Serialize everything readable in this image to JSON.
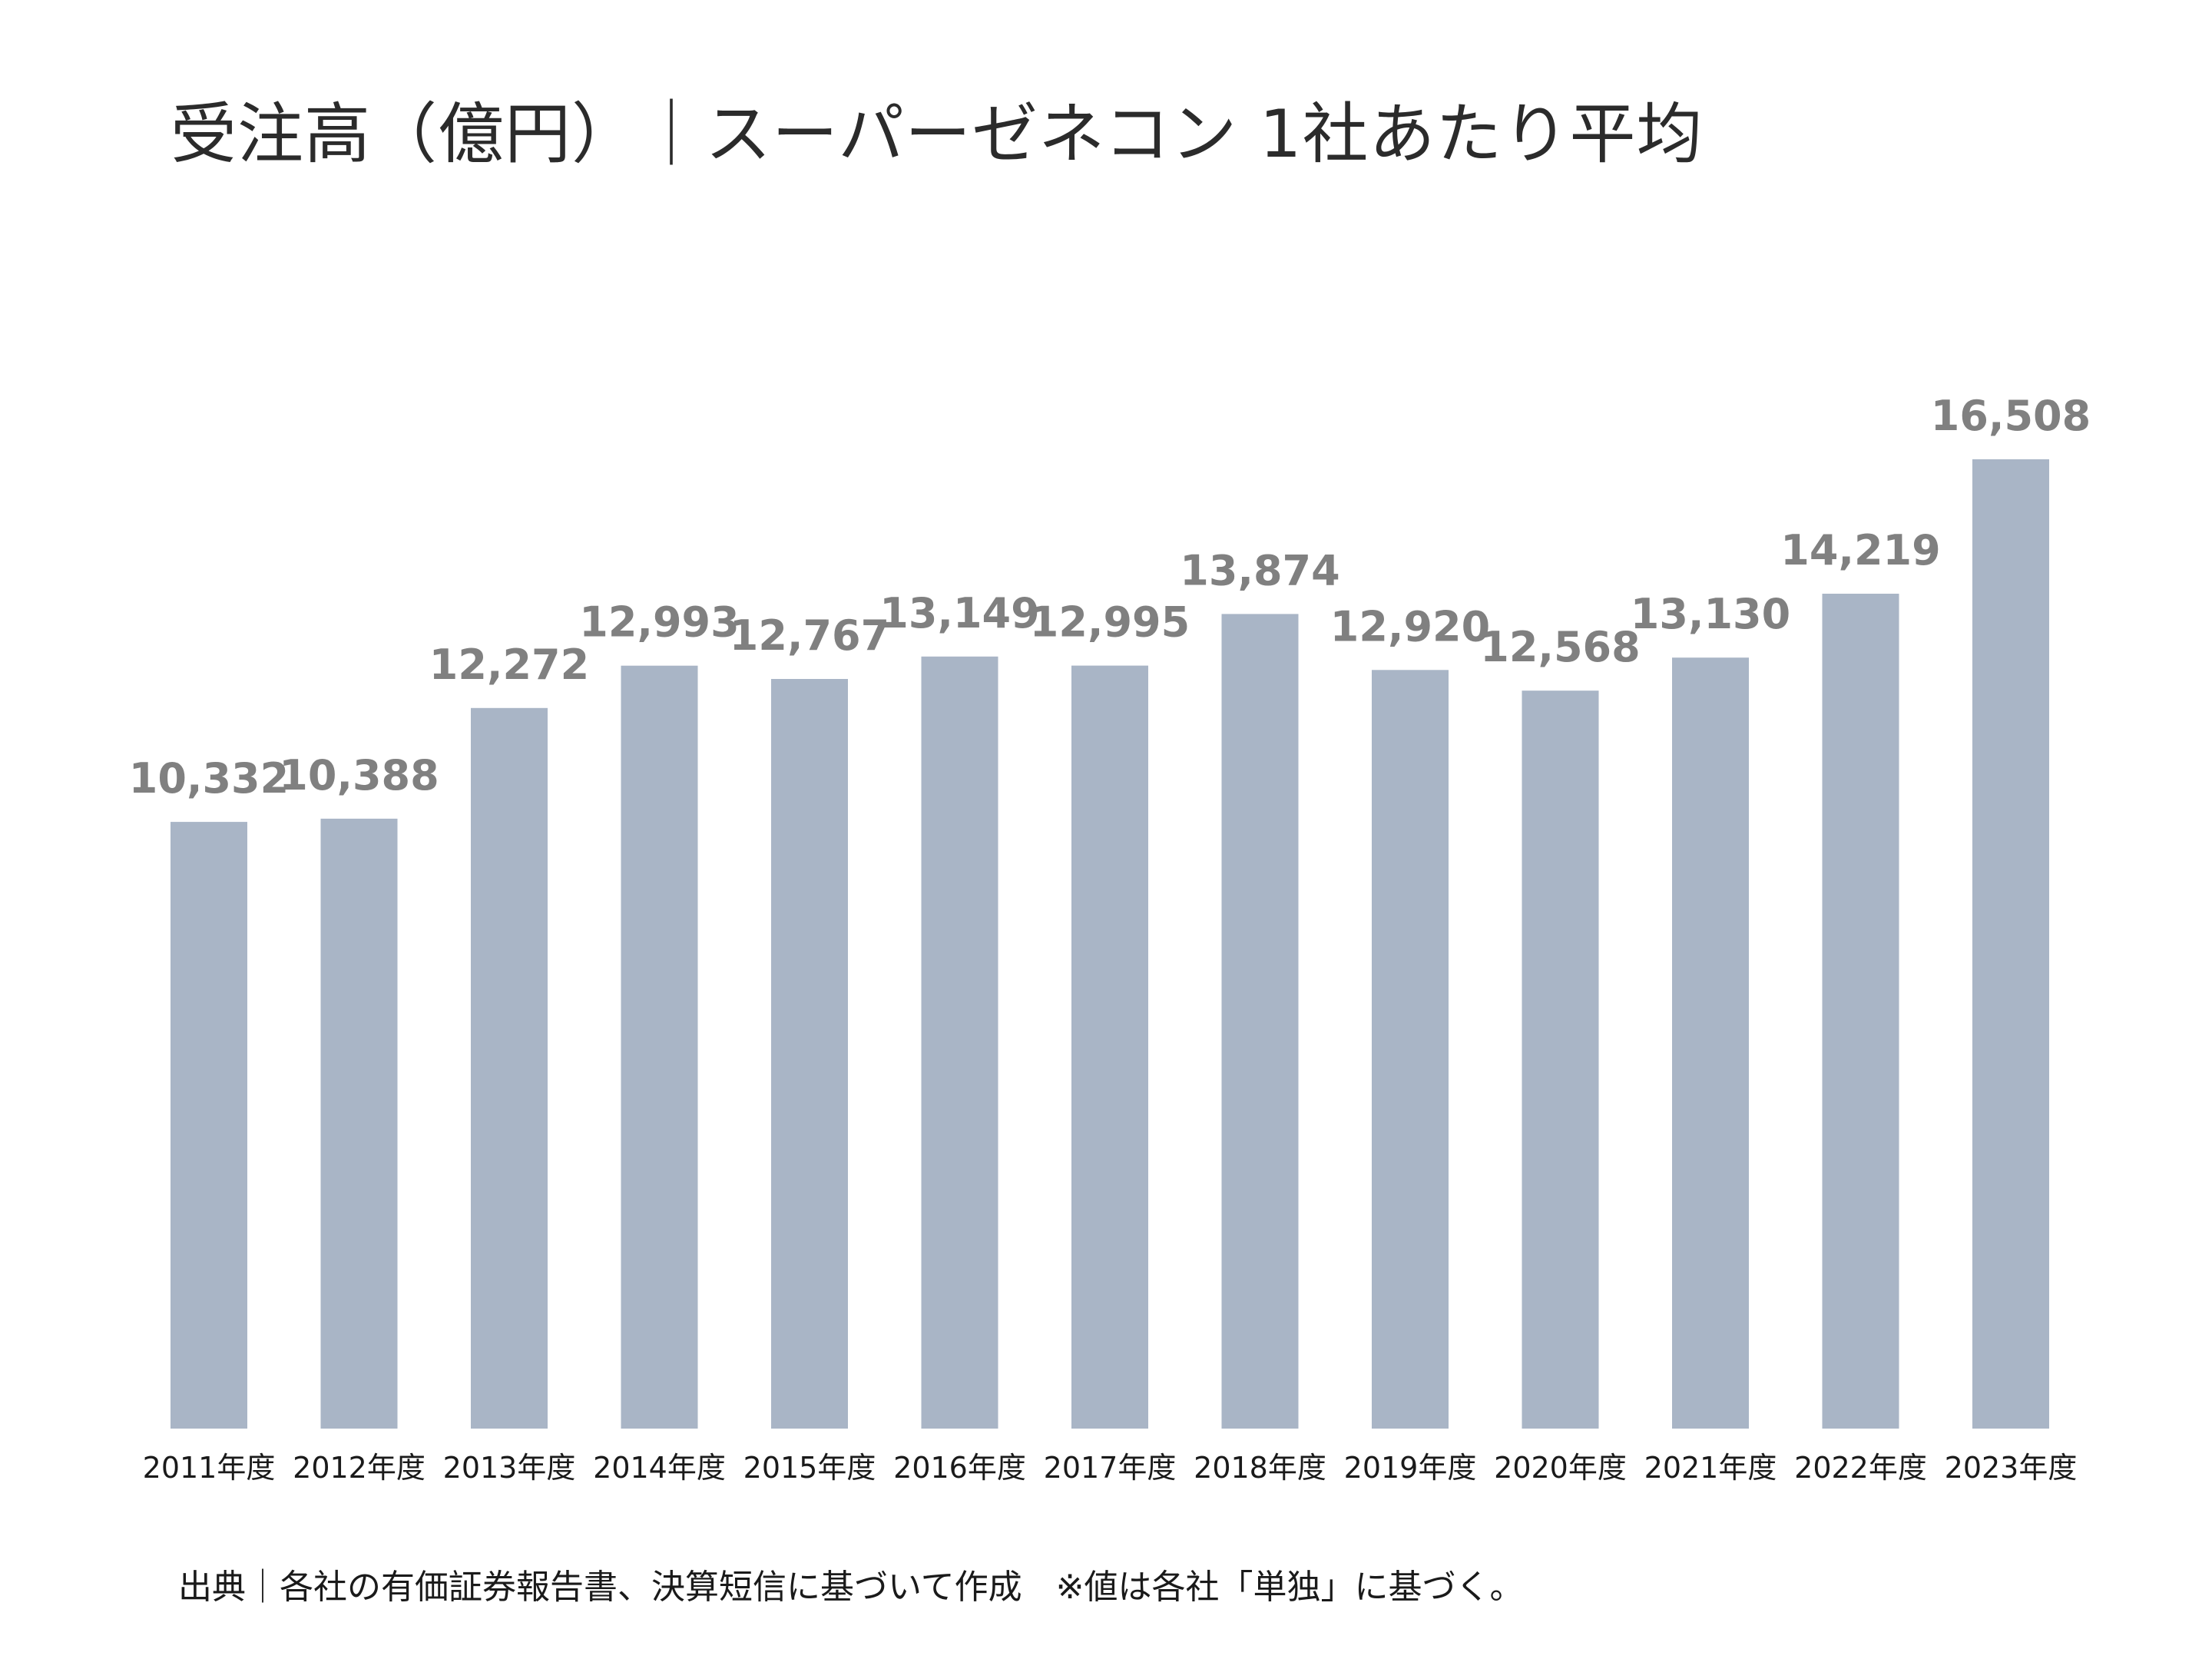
{
  "chart_data": {
    "type": "bar",
    "title": "受注高（億円）｜スーパーゼネコン 1社あたり平均",
    "categories": [
      "2011年度",
      "2012年度",
      "2013年度",
      "2014年度",
      "2015年度",
      "2016年度",
      "2017年度",
      "2018年度",
      "2019年度",
      "2020年度",
      "2021年度",
      "2022年度",
      "2023年度"
    ],
    "values": [
      10332,
      10388,
      12272,
      12993,
      12767,
      13149,
      12995,
      13874,
      12920,
      12568,
      13130,
      14219,
      16508
    ],
    "value_labels": [
      "10,332",
      "10,388",
      "12,272",
      "12,993",
      "12,767",
      "13,149",
      "12,995",
      "13,874",
      "12,920",
      "12,568",
      "13,130",
      "14,219",
      "16,508"
    ],
    "ylim": [
      0,
      16508
    ],
    "grid": false,
    "legend": "none",
    "bar_color": "#a9b5c6",
    "label_color": "#808080"
  },
  "source_note": "出典｜各社の有価証券報告書、決算短信に基づいて作成　※値は各社「単独」に基づく。"
}
